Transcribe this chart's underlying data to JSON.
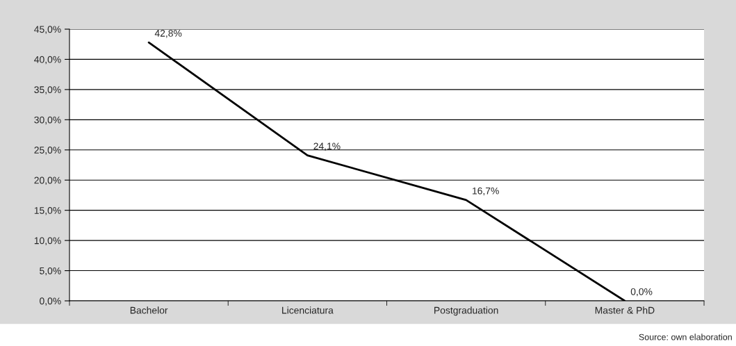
{
  "chart_data": {
    "type": "line",
    "categories": [
      "Bachelor",
      "Licenciatura",
      "Postgraduation",
      "Master & PhD"
    ],
    "series": [
      {
        "color": "#000000",
        "values": [
          42.8,
          24.1,
          16.7,
          0.0
        ],
        "value_labels": [
          "42,8%",
          "24,1%",
          "16,7%",
          "0,0%"
        ]
      }
    ],
    "ylim": [
      0,
      45
    ],
    "yticks": [
      {
        "value": 0,
        "label": "0,0%"
      },
      {
        "value": 5,
        "label": "5,0%"
      },
      {
        "value": 10,
        "label": "10,0%"
      },
      {
        "value": 15,
        "label": "15,0%"
      },
      {
        "value": 20,
        "label": "20,0%"
      },
      {
        "value": 25,
        "label": "25,0%"
      },
      {
        "value": 30,
        "label": "30,0%"
      },
      {
        "value": 35,
        "label": "35,0%"
      },
      {
        "value": 40,
        "label": "40,0%"
      },
      {
        "value": 45,
        "label": "45,0%"
      }
    ],
    "grid": "y",
    "marker": "none",
    "line_style": "solid",
    "legend": false,
    "annotations": [
      "Source: own elaboration"
    ]
  }
}
